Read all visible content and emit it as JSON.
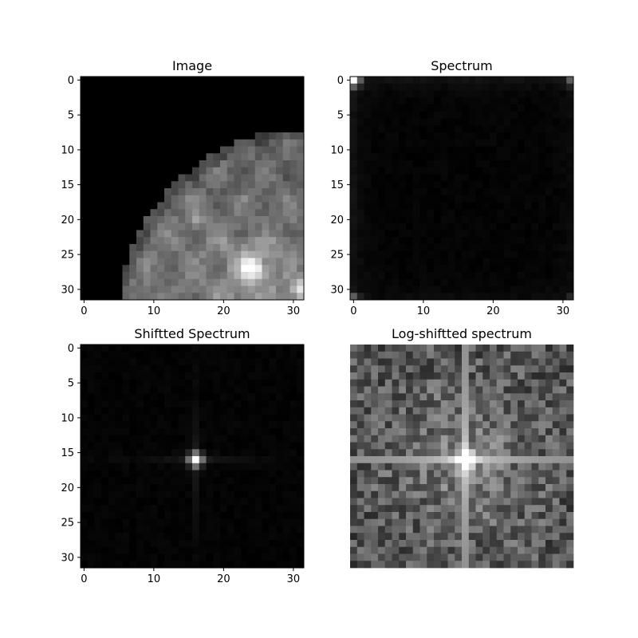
{
  "chart_data": [
    {
      "type": "heatmap",
      "title": "Image",
      "colormap": "gray",
      "grid_size": 32,
      "xlim": [
        -0.5,
        31.5
      ],
      "ylim": [
        31.5,
        -0.5
      ],
      "x_ticks": [
        "0",
        "10",
        "20",
        "30"
      ],
      "y_ticks": [
        "0",
        "5",
        "10",
        "15",
        "20",
        "25",
        "30"
      ],
      "show_axes": true,
      "content": "grayscale lunar disk filling the lower-right of the frame, bright highlights near (24,27) and (31,30)"
    },
    {
      "type": "heatmap",
      "title": "Spectrum",
      "colormap": "gray",
      "grid_size": 32,
      "xlim": [
        -0.5,
        31.5
      ],
      "ylim": [
        31.5,
        -0.5
      ],
      "x_ticks": [
        "0",
        "10",
        "20",
        "30"
      ],
      "y_ticks": [
        "0",
        "5",
        "10",
        "15",
        "20",
        "25",
        "30"
      ],
      "show_axes": true,
      "content": "FFT magnitude, mostly dark with bright corners, brightest at (0,0)"
    },
    {
      "type": "heatmap",
      "title": "Shiftted Spectrum",
      "colormap": "gray",
      "grid_size": 32,
      "xlim": [
        -0.5,
        31.5
      ],
      "ylim": [
        31.5,
        -0.5
      ],
      "x_ticks": [
        "0",
        "10",
        "20",
        "30"
      ],
      "y_ticks": [
        "0",
        "5",
        "10",
        "15",
        "20",
        "25",
        "30"
      ],
      "show_axes": true,
      "content": "centered FFT magnitude, single bright peak at (16,16) with faint cross"
    },
    {
      "type": "heatmap",
      "title": "Log-shiftted spectrum",
      "colormap": "gray",
      "grid_size": 32,
      "show_axes": false,
      "content": "log of centered FFT magnitude, bright cross through center (16,16), noisy texture elsewhere"
    }
  ]
}
